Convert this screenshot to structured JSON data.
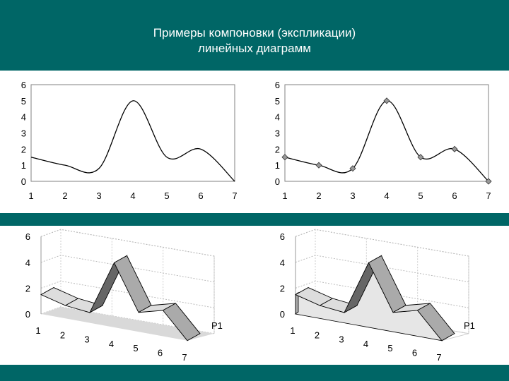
{
  "title": {
    "line1": "Примеры компоновки (экспликации)",
    "line2": "линейных диаграмм"
  },
  "colors": {
    "header": "#006666",
    "line": "#000000",
    "marker": "#999999",
    "ribbon_top": "#dddddd",
    "ribbon_side": "#aaaaaa",
    "floor": "#d9d9d9"
  },
  "chart_data": [
    {
      "type": "line",
      "style": "smooth",
      "markers": false,
      "x": [
        "1",
        "2",
        "3",
        "4",
        "5",
        "6",
        "7"
      ],
      "series": [
        {
          "values": [
            1.5,
            1,
            0.8,
            5,
            1.5,
            2,
            0
          ]
        }
      ],
      "y_ticks": [
        "0",
        "1",
        "2",
        "3",
        "4",
        "5",
        "6"
      ],
      "ylim": [
        0,
        6
      ],
      "grid": false
    },
    {
      "type": "line",
      "style": "smooth",
      "markers": true,
      "marker_shape": "diamond",
      "x": [
        "1",
        "2",
        "3",
        "4",
        "5",
        "6",
        "7"
      ],
      "series": [
        {
          "values": [
            1.5,
            1,
            0.8,
            5,
            1.5,
            2,
            0
          ]
        }
      ],
      "y_ticks": [
        "0",
        "1",
        "2",
        "3",
        "4",
        "5",
        "6"
      ],
      "ylim": [
        0,
        6
      ],
      "grid": false
    },
    {
      "type": "line",
      "style": "3d-ribbon",
      "x": [
        "1",
        "2",
        "3",
        "4",
        "5",
        "6",
        "7"
      ],
      "series": [
        {
          "name": "Р1",
          "values": [
            1.5,
            1,
            0.8,
            5,
            1.5,
            2,
            0
          ]
        }
      ],
      "y_ticks": [
        "0",
        "2",
        "4",
        "6"
      ],
      "ylim": [
        0,
        6
      ],
      "grid": true
    },
    {
      "type": "area",
      "style": "3d-ribbon",
      "x": [
        "1",
        "2",
        "3",
        "4",
        "5",
        "6",
        "7"
      ],
      "series": [
        {
          "name": "Р1",
          "values": [
            1.5,
            1,
            0.8,
            5,
            1.5,
            2,
            0
          ]
        }
      ],
      "y_ticks": [
        "0",
        "2",
        "4",
        "6"
      ],
      "ylim": [
        0,
        6
      ],
      "grid": true
    }
  ]
}
